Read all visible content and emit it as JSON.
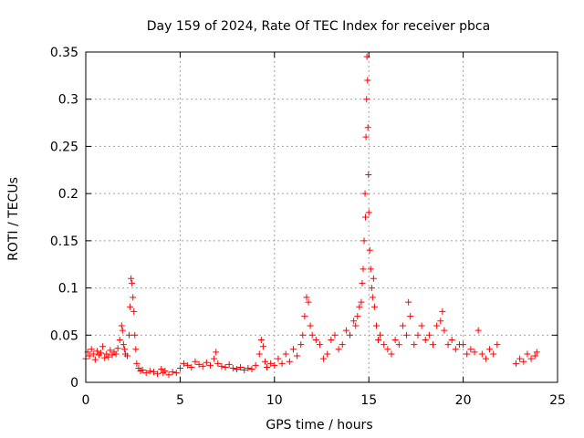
{
  "chart_data": {
    "type": "scatter",
    "title": "Day 159 of 2024, Rate Of TEC Index for receiver pbca",
    "xlabel": "GPS time / hours",
    "ylabel": "ROTI / TECUs",
    "xlim": [
      0,
      25
    ],
    "ylim": [
      0,
      0.35
    ],
    "x_ticks": [
      0,
      5,
      10,
      15,
      20,
      25
    ],
    "x_tick_labels": [
      "0",
      "5",
      "10",
      "15",
      "20",
      "25"
    ],
    "y_ticks": [
      0,
      0.05,
      0.1,
      0.15,
      0.2,
      0.25,
      0.3,
      0.35
    ],
    "y_tick_labels": [
      "0",
      "0.05",
      "0.1",
      "0.15",
      "0.2",
      "0.25",
      "0.3",
      "0.35"
    ],
    "grid": true,
    "marker": "plus",
    "marker_color": "#ff0000",
    "series": [
      {
        "name": "ROTI",
        "x": [
          0.0,
          0.1,
          0.2,
          0.3,
          0.4,
          0.5,
          0.6,
          0.7,
          0.8,
          0.9,
          1.0,
          1.1,
          1.2,
          1.3,
          1.4,
          1.5,
          1.6,
          1.7,
          1.8,
          1.9,
          1.95,
          2.0,
          2.05,
          2.1,
          2.2,
          2.3,
          2.35,
          2.4,
          2.45,
          2.5,
          2.55,
          2.6,
          2.65,
          2.7,
          2.8,
          2.9,
          3.0,
          3.2,
          3.4,
          3.6,
          3.8,
          4.0,
          4.1,
          4.2,
          4.4,
          4.6,
          4.8,
          5.0,
          5.2,
          5.4,
          5.6,
          5.8,
          6.0,
          6.2,
          6.4,
          6.6,
          6.8,
          6.9,
          7.0,
          7.2,
          7.4,
          7.6,
          7.8,
          8.0,
          8.2,
          8.4,
          8.6,
          8.8,
          9.0,
          9.2,
          9.3,
          9.4,
          9.5,
          9.6,
          9.8,
          10.0,
          10.2,
          10.4,
          10.6,
          10.8,
          11.0,
          11.2,
          11.4,
          11.5,
          11.6,
          11.7,
          11.8,
          11.9,
          12.0,
          12.2,
          12.4,
          12.6,
          12.8,
          13.0,
          13.2,
          13.4,
          13.6,
          13.8,
          14.0,
          14.2,
          14.3,
          14.4,
          14.5,
          14.6,
          14.65,
          14.7,
          14.75,
          14.8,
          14.82,
          14.85,
          14.88,
          14.9,
          14.93,
          14.95,
          14.98,
          15.0,
          15.05,
          15.1,
          15.15,
          15.2,
          15.25,
          15.3,
          15.4,
          15.5,
          15.6,
          15.8,
          16.0,
          16.2,
          16.4,
          16.6,
          16.8,
          17.0,
          17.1,
          17.2,
          17.4,
          17.6,
          17.8,
          18.0,
          18.2,
          18.4,
          18.6,
          18.8,
          18.9,
          19.0,
          19.2,
          19.4,
          19.6,
          19.8,
          20.0,
          20.2,
          20.4,
          20.6,
          20.8,
          21.0,
          21.2,
          21.4,
          21.6,
          21.8,
          22.8,
          23.0,
          23.2,
          23.4,
          23.6,
          23.8,
          23.9
        ],
        "y": [
          0.025,
          0.032,
          0.028,
          0.035,
          0.03,
          0.024,
          0.033,
          0.029,
          0.031,
          0.038,
          0.026,
          0.03,
          0.027,
          0.034,
          0.029,
          0.032,
          0.03,
          0.036,
          0.045,
          0.06,
          0.055,
          0.04,
          0.035,
          0.03,
          0.028,
          0.05,
          0.08,
          0.11,
          0.105,
          0.09,
          0.075,
          0.05,
          0.035,
          0.02,
          0.015,
          0.012,
          0.013,
          0.01,
          0.012,
          0.011,
          0.009,
          0.014,
          0.01,
          0.012,
          0.008,
          0.011,
          0.01,
          0.015,
          0.02,
          0.018,
          0.016,
          0.022,
          0.019,
          0.017,
          0.021,
          0.018,
          0.025,
          0.032,
          0.02,
          0.017,
          0.016,
          0.019,
          0.015,
          0.014,
          0.016,
          0.013,
          0.015,
          0.014,
          0.018,
          0.03,
          0.045,
          0.038,
          0.022,
          0.016,
          0.02,
          0.018,
          0.025,
          0.02,
          0.03,
          0.022,
          0.035,
          0.028,
          0.04,
          0.05,
          0.07,
          0.09,
          0.085,
          0.06,
          0.05,
          0.045,
          0.04,
          0.025,
          0.03,
          0.045,
          0.05,
          0.035,
          0.04,
          0.055,
          0.05,
          0.065,
          0.06,
          0.07,
          0.08,
          0.085,
          0.105,
          0.12,
          0.15,
          0.2,
          0.175,
          0.26,
          0.3,
          0.345,
          0.32,
          0.27,
          0.22,
          0.18,
          0.14,
          0.12,
          0.1,
          0.09,
          0.11,
          0.08,
          0.06,
          0.045,
          0.05,
          0.04,
          0.035,
          0.03,
          0.045,
          0.04,
          0.06,
          0.05,
          0.085,
          0.07,
          0.04,
          0.05,
          0.06,
          0.045,
          0.05,
          0.04,
          0.06,
          0.065,
          0.075,
          0.055,
          0.04,
          0.045,
          0.035,
          0.04,
          0.04,
          0.03,
          0.035,
          0.032,
          0.055,
          0.03,
          0.025,
          0.035,
          0.03,
          0.04,
          0.02,
          0.025,
          0.022,
          0.03,
          0.025,
          0.028,
          0.032
        ]
      }
    ]
  }
}
